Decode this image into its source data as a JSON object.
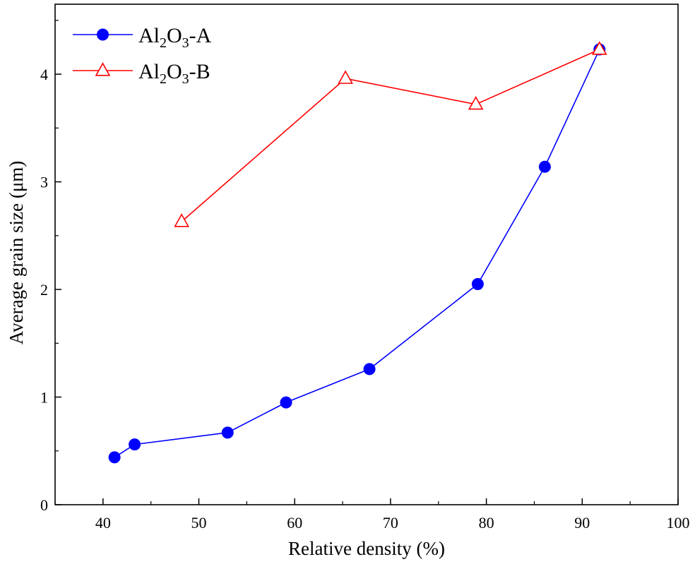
{
  "chart_data": {
    "type": "line",
    "title": "",
    "xlabel": "Relative density (%)",
    "ylabel": "Average grain size (μm)",
    "xlim": [
      35,
      100
    ],
    "ylim": [
      0,
      4.65
    ],
    "xticks": [
      40,
      50,
      60,
      70,
      80,
      90,
      100
    ],
    "yticks": [
      0,
      1,
      2,
      3,
      4
    ],
    "grid": false,
    "legend_position": "top-left",
    "series": [
      {
        "name": "Al2O3-A",
        "label_parts": {
          "main": "Al",
          "sub1": "2",
          "mid": "O",
          "sub2": "3",
          "suffix": "-A"
        },
        "color": "#0000ff",
        "marker": "filled-circle",
        "x": [
          41.2,
          43.3,
          53.0,
          59.1,
          67.8,
          79.1,
          86.1,
          91.8
        ],
        "y": [
          0.44,
          0.56,
          0.67,
          0.95,
          1.26,
          2.05,
          3.14,
          4.23
        ]
      },
      {
        "name": "Al2O3-B",
        "label_parts": {
          "main": "Al",
          "sub1": "2",
          "mid": "O",
          "sub2": "3",
          "suffix": "-B"
        },
        "color": "#ff0000",
        "marker": "open-triangle",
        "x": [
          48.2,
          65.3,
          78.9,
          91.8
        ],
        "y": [
          2.63,
          3.96,
          3.72,
          4.23
        ]
      }
    ]
  }
}
